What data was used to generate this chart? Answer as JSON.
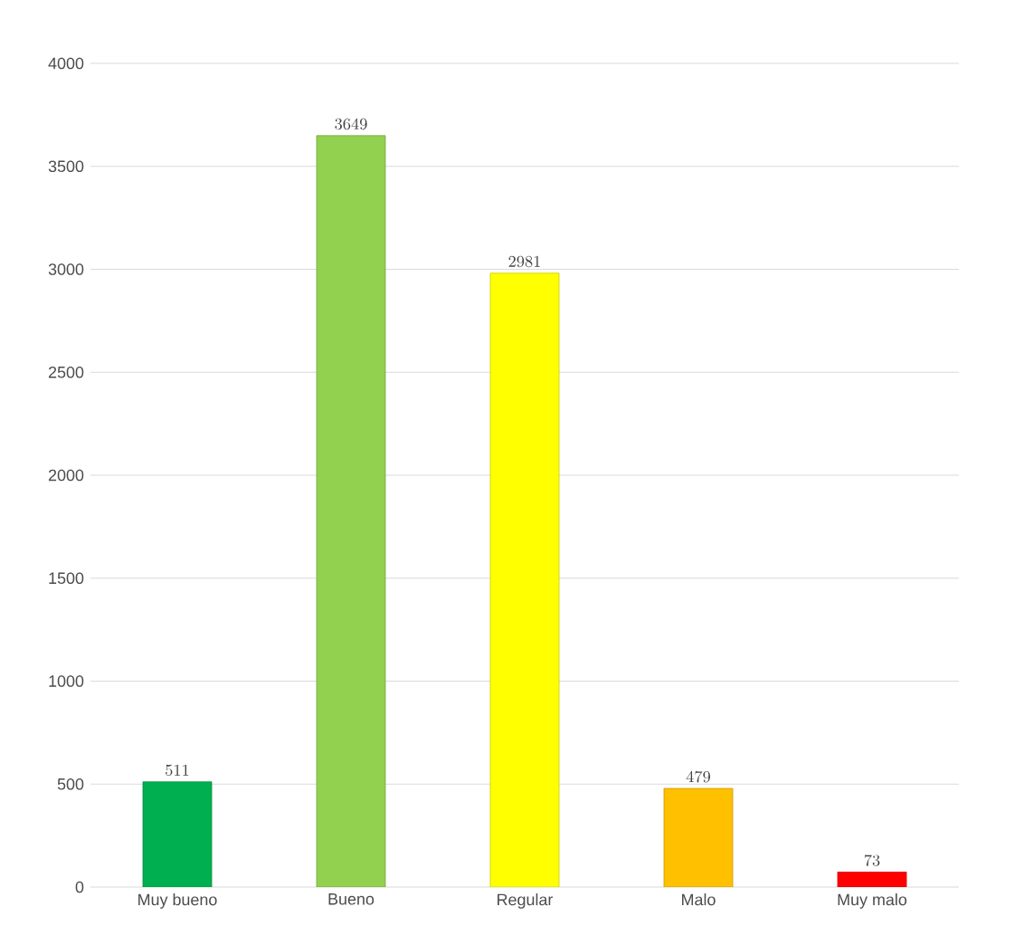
{
  "chart_data": {
    "type": "bar",
    "categories": [
      "Muy bueno",
      "Bueno",
      "Regular",
      "Malo",
      "Muy malo"
    ],
    "values": [
      511,
      3649,
      2981,
      479,
      73
    ],
    "colors": [
      "#00b050",
      "#92d050",
      "#ffff00",
      "#ffc000",
      "#ff0000"
    ],
    "ylim": [
      0,
      4000
    ],
    "yticks": [
      0,
      500,
      1000,
      1500,
      2000,
      2500,
      3000,
      3500,
      4000
    ],
    "grid": "y",
    "data_labels": true
  }
}
